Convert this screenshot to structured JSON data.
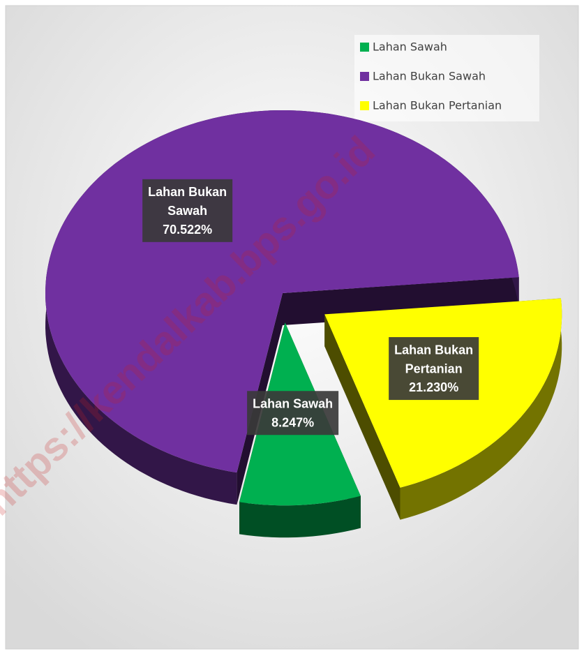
{
  "chart_data": {
    "type": "pie",
    "categories": [
      "Lahan Sawah",
      "Lahan Bukan Sawah",
      "Lahan Bukan Pertanian"
    ],
    "values": [
      8.247,
      70.522,
      21.23
    ],
    "value_labels": [
      "8.247%",
      "70.522%",
      "21.230%"
    ],
    "colors": [
      "#00b050",
      "#7030a0",
      "#ffff00"
    ],
    "legend": "top-right",
    "watermark": "https://kendalkab.bps.go.id"
  }
}
